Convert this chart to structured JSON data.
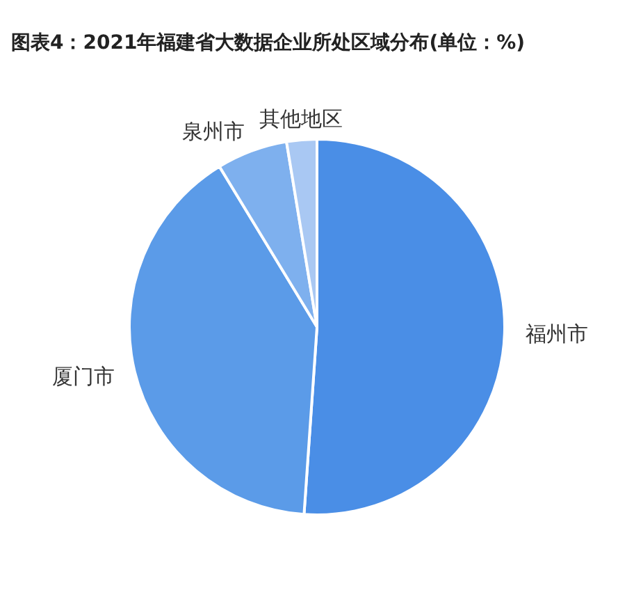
{
  "chart_data": {
    "type": "pie",
    "title": "图表4：2021年福建省大数据企业所处区域分布(单位：%)",
    "categories": [
      "福州市",
      "厦门市",
      "泉州市",
      "其他地区"
    ],
    "values": [
      51.1,
      40.2,
      6.1,
      2.6
    ],
    "colors": [
      "#4a8ee6",
      "#5b9be8",
      "#7eb0ee",
      "#a9c8f3"
    ]
  }
}
